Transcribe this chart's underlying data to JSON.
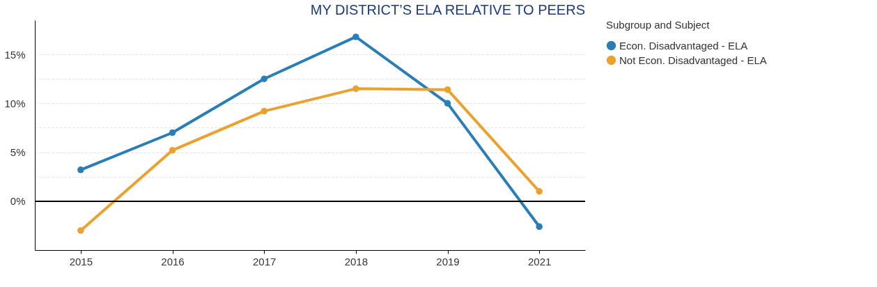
{
  "chart_data": {
    "type": "line",
    "title": "MY DISTRICT’S ELA RELATIVE TO PEERS",
    "legend_title": "Subgroup and Subject",
    "categories": [
      "2015",
      "2016",
      "2017",
      "2018",
      "2019",
      "2021"
    ],
    "series": [
      {
        "name": "Econ. Disadvantaged - ELA",
        "color": "#2a7db5",
        "values": [
          3.2,
          7.0,
          12.5,
          16.8,
          10.0,
          -2.6
        ]
      },
      {
        "name": "Not Econ. Disadvantaged - ELA",
        "color": "#e9a22f",
        "values": [
          -3.0,
          5.2,
          9.2,
          11.5,
          11.4,
          1.0
        ]
      }
    ],
    "ylim": [
      -5,
      18.5
    ],
    "yticks": [
      {
        "value": 0,
        "label": "0%"
      },
      {
        "value": 2.5,
        "label": null
      },
      {
        "value": 5,
        "label": "5%"
      },
      {
        "value": 7.5,
        "label": null
      },
      {
        "value": 10,
        "label": "10%"
      },
      {
        "value": 12.5,
        "label": null
      },
      {
        "value": 15,
        "label": "15%"
      }
    ],
    "ref_lines": [
      {
        "axis": "y",
        "value": 0,
        "color": "#000000"
      }
    ],
    "grid": "y",
    "legend": "top right",
    "marker": "circle",
    "line_style": "solid"
  }
}
